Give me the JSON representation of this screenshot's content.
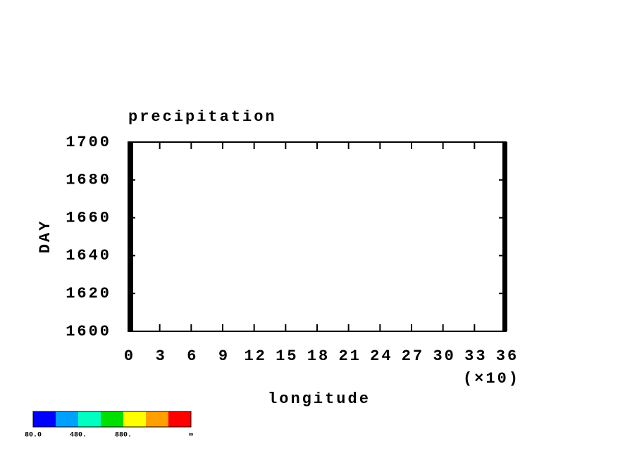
{
  "chart_data": {
    "type": "hovmoller",
    "title": "precipitation",
    "x_label": "longitude",
    "x_scale_label": "(×10)",
    "y_label": "DAY",
    "xlim": [
      0,
      36
    ],
    "xticks": [
      0,
      3,
      6,
      9,
      12,
      15,
      18,
      21,
      24,
      27,
      30,
      33,
      36
    ],
    "ylim": [
      1600,
      1700
    ],
    "yticks": [
      1600,
      1620,
      1640,
      1660,
      1680,
      1700
    ],
    "colorbar": {
      "colors": [
        "#0000ff",
        "#00a0ff",
        "#00ffc0",
        "#00e000",
        "#ffff00",
        "#ffa000",
        "#ff0000"
      ],
      "labels": [
        "80.0",
        "480.",
        "880.",
        "∞"
      ]
    }
  }
}
